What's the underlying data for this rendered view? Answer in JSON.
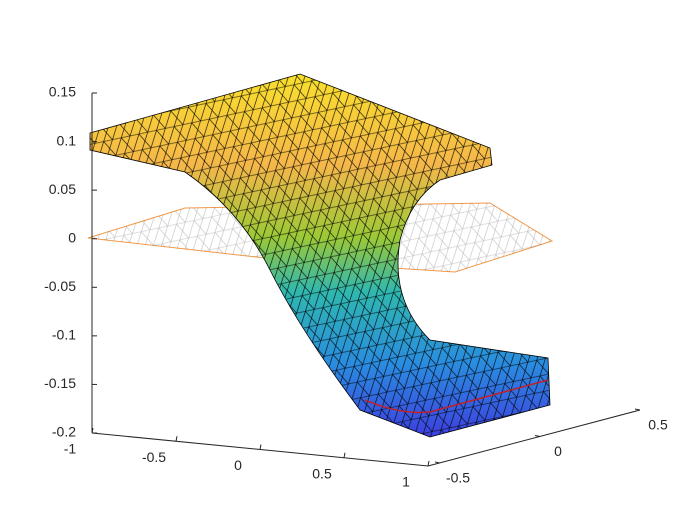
{
  "chart_data": {
    "type": "surface",
    "xlim": [
      -1,
      1
    ],
    "xticks": [
      -1,
      -0.5,
      0,
      0.5,
      1
    ],
    "ylim": [
      -0.5,
      0.5
    ],
    "yticks": [
      -0.5,
      0,
      0.5
    ],
    "zlim": [
      -0.2,
      0.15
    ],
    "zticks": [
      -0.2,
      -0.15,
      -0.1,
      -0.05,
      0,
      0.05,
      0.1,
      0.15
    ]
  }
}
